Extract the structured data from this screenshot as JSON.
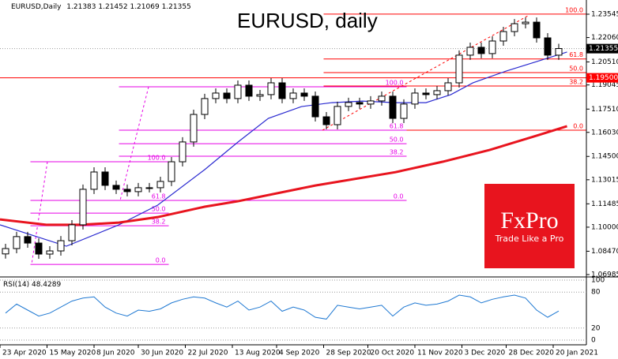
{
  "chart_data": {
    "type": "candlestick",
    "title": "EURUSD, daily",
    "symbol_label": "EURUSD,Daily",
    "header_values": [
      1.21383,
      1.21452,
      1.21069,
      1.21355
    ],
    "xlim": [
      0,
      212
    ],
    "xticks": [
      {
        "value": 0,
        "label": "23 Apr 2020"
      },
      {
        "value": 17,
        "label": "15 May 2020"
      },
      {
        "value": 34,
        "label": "8 Jun 2020"
      },
      {
        "value": 50,
        "label": "30 Jun 2020"
      },
      {
        "value": 67,
        "label": "22 Jul 2020"
      },
      {
        "value": 84,
        "label": "13 Aug 2020"
      },
      {
        "value": 100,
        "label": "4 Sep 2020"
      },
      {
        "value": 117,
        "label": "28 Sep 2020"
      },
      {
        "value": 133,
        "label": "20 Oct 2020"
      },
      {
        "value": 150,
        "label": "11 Nov 2020"
      },
      {
        "value": 167,
        "label": "3 Dec 2020"
      },
      {
        "value": 183,
        "label": "28 Dec 2020"
      },
      {
        "value": 200,
        "label": "20 Jan 2021"
      }
    ],
    "ylim": [
      1.06885,
      1.24448
    ],
    "yticks": [
      1.23545,
      {
        "value": 1.2206,
        "label": "1.22060"
      },
      {
        "value": 1.2051,
        "label": "1.20510"
      },
      1.19045,
      {
        "value": 1.1751,
        "label": "1.17510"
      },
      {
        "value": 1.1603,
        "label": "1.16030"
      },
      {
        "value": 1.145,
        "label": "1.14500"
      },
      1.13015,
      1.11485,
      {
        "value": 1.1,
        "label": "1.10000"
      },
      {
        "value": 1.0847,
        "label": "1.08470"
      },
      1.06985
    ],
    "candles": {
      "x": [
        2,
        6,
        10,
        14,
        18,
        22,
        26,
        30,
        34,
        38,
        42,
        46,
        50,
        54,
        58,
        62,
        66,
        70,
        74,
        78,
        82,
        86,
        90,
        94,
        98,
        102,
        106,
        110,
        114,
        118,
        122,
        126,
        130,
        134,
        138,
        142,
        146,
        150,
        154,
        158,
        162,
        166,
        170,
        174,
        178,
        182,
        186,
        190,
        194,
        198,
        202
      ],
      "open": [
        1.083,
        1.0864,
        1.094,
        1.0899,
        1.0829,
        1.0849,
        1.0914,
        1.1015,
        1.1241,
        1.1351,
        1.1266,
        1.1241,
        1.1226,
        1.1251,
        1.1251,
        1.1291,
        1.1416,
        1.1542,
        1.1717,
        1.1818,
        1.1853,
        1.1818,
        1.1903,
        1.1833,
        1.1843,
        1.1918,
        1.1818,
        1.1853,
        1.1833,
        1.1702,
        1.1652,
        1.1768,
        1.1793,
        1.1783,
        1.1803,
        1.1833,
        1.1692,
        1.1783,
        1.1853,
        1.1843,
        1.1868,
        1.1918,
        1.2094,
        1.2144,
        1.2104,
        1.2184,
        1.2244,
        1.2294,
        1.2304,
        1.2204,
        1.2094
      ],
      "high": [
        1.0894,
        1.097,
        1.097,
        1.0929,
        1.0879,
        1.0944,
        1.1045,
        1.1271,
        1.1381,
        1.1381,
        1.1296,
        1.1271,
        1.1281,
        1.1281,
        1.1321,
        1.1446,
        1.1572,
        1.1747,
        1.1848,
        1.1883,
        1.1883,
        1.1933,
        1.1933,
        1.1873,
        1.1948,
        1.1948,
        1.1883,
        1.1883,
        1.1863,
        1.1732,
        1.1798,
        1.1823,
        1.1823,
        1.1833,
        1.1863,
        1.1863,
        1.1813,
        1.1883,
        1.1883,
        1.1898,
        1.1948,
        1.2124,
        1.2174,
        1.2174,
        1.2214,
        1.2274,
        1.2324,
        1.2334,
        1.2334,
        1.2234,
        1.2166
      ],
      "low": [
        1.08,
        1.0834,
        1.0869,
        1.0799,
        1.0799,
        1.0819,
        1.0884,
        1.0985,
        1.1211,
        1.1236,
        1.1211,
        1.1196,
        1.1196,
        1.1221,
        1.1221,
        1.1261,
        1.1386,
        1.1512,
        1.1687,
        1.1788,
        1.1788,
        1.1788,
        1.1803,
        1.1803,
        1.1813,
        1.1788,
        1.1788,
        1.1803,
        1.1672,
        1.1622,
        1.1622,
        1.1738,
        1.1753,
        1.1753,
        1.1773,
        1.1662,
        1.1662,
        1.1753,
        1.1813,
        1.1813,
        1.1838,
        1.1888,
        1.2064,
        1.2074,
        1.2074,
        1.2154,
        1.2214,
        1.2264,
        1.2174,
        1.2064,
        1.2064
      ],
      "close": [
        1.0864,
        1.094,
        1.0899,
        1.0829,
        1.0849,
        1.0914,
        1.1015,
        1.1241,
        1.1351,
        1.1266,
        1.1241,
        1.1226,
        1.1251,
        1.1251,
        1.1291,
        1.1416,
        1.1542,
        1.1717,
        1.1818,
        1.1853,
        1.1818,
        1.1903,
        1.1833,
        1.1843,
        1.1918,
        1.1818,
        1.1853,
        1.1833,
        1.1702,
        1.1652,
        1.1768,
        1.1793,
        1.1783,
        1.1803,
        1.1833,
        1.1692,
        1.1783,
        1.1853,
        1.1843,
        1.1868,
        1.1918,
        1.2094,
        1.2144,
        1.2104,
        1.2184,
        1.2244,
        1.2294,
        1.2304,
        1.2204,
        1.2094,
        1.2136
      ]
    },
    "color_up": "#ffffff",
    "color_down": "#000000",
    "moving_averages": [
      {
        "color": "#2a2ad0",
        "x": [
          0,
          24,
          43,
          57,
          74,
          86,
          97,
          109,
          120,
          131,
          143,
          154,
          163,
          171,
          183,
          194,
          205
        ],
        "values": [
          1.1015,
          1.0879,
          1.1015,
          1.114,
          1.1366,
          1.1541,
          1.1692,
          1.1767,
          1.1792,
          1.1802,
          1.1792,
          1.1792,
          1.1843,
          1.1918,
          1.1993,
          1.2053,
          1.2114
        ]
      },
      {
        "color": "#e8141e",
        "x": [
          0,
          17,
          29,
          43,
          57,
          74,
          86,
          114,
          143,
          160,
          177,
          194,
          205
        ],
        "values": [
          1.1049,
          1.1015,
          1.1015,
          1.1029,
          1.1064,
          1.113,
          1.1165,
          1.1265,
          1.135,
          1.1416,
          1.1491,
          1.1582,
          1.1642
        ]
      }
    ],
    "fib_sets": [
      {
        "color": "#ff0000",
        "x_range": [
          117,
          212
        ],
        "levels": [
          {
            "label": "100.0",
            "value": 1.2355
          },
          {
            "label": "61.8",
            "value": 1.207
          },
          {
            "label": "50.0",
            "value": 1.1983
          },
          {
            "label": "38.2",
            "value": 1.1898
          },
          {
            "label": "0.0",
            "value": 1.1617
          }
        ]
      },
      {
        "color": "#e600e6",
        "x_range": [
          43,
          147
        ],
        "levels": [
          {
            "label": "100.0",
            "value": 1.1893
          },
          {
            "label": "61.8",
            "value": 1.1617
          },
          {
            "label": "50.0",
            "value": 1.1531
          },
          {
            "label": "38.2",
            "value": 1.1451
          },
          {
            "label": "0.0",
            "value": 1.117
          }
        ]
      },
      {
        "color": "#e600e6",
        "x_range": [
          11,
          61
        ],
        "levels": [
          {
            "label": "100.0",
            "value": 1.1416
          },
          {
            "label": "61.8",
            "value": 1.117
          },
          {
            "label": "50.0",
            "value": 1.1089
          },
          {
            "label": "38.2",
            "value": 1.1009
          },
          {
            "label": "0.0",
            "value": 1.0763
          }
        ]
      }
    ],
    "level_line": {
      "value": 1.195,
      "label": "1.19500",
      "color": "#ff0000"
    },
    "last_price": 1.21355,
    "rsi": {
      "label": "RSI(14)",
      "color": "#1e78d2",
      "ylim": [
        0,
        100
      ],
      "yticks": [
        0,
        20,
        80,
        100
      ],
      "values": [
        45,
        60,
        50,
        40,
        45,
        55,
        65,
        70,
        72,
        55,
        45,
        40,
        50,
        48,
        52,
        62,
        68,
        72,
        70,
        62,
        55,
        65,
        50,
        55,
        65,
        48,
        55,
        50,
        38,
        35,
        58,
        55,
        52,
        55,
        58,
        40,
        55,
        62,
        58,
        60,
        65,
        75,
        72,
        62,
        68,
        72,
        75,
        70,
        50,
        38,
        48.4289
      ]
    },
    "brand": {
      "name": "FxPro",
      "slogan": "Trade Like a Pro"
    }
  }
}
